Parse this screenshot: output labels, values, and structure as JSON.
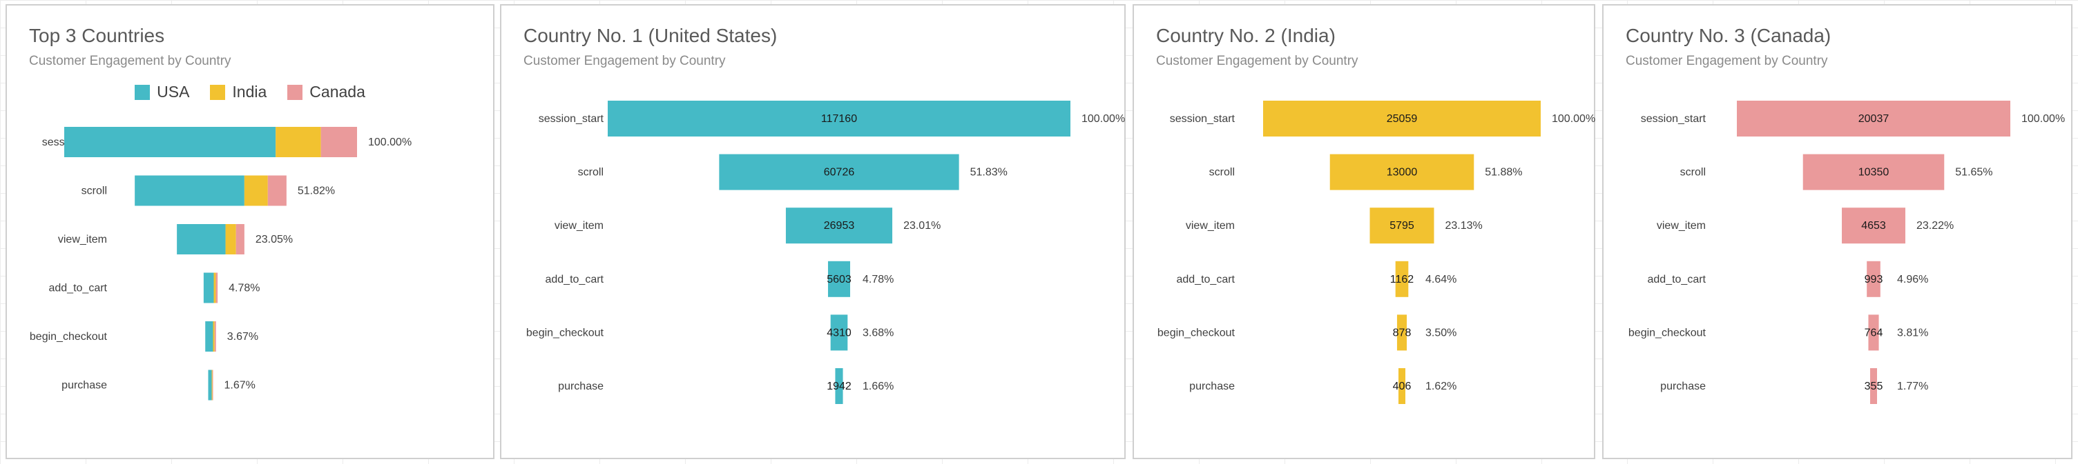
{
  "colors": {
    "USA": "#45BAC6",
    "India": "#F2C230",
    "Canada": "#EA9A9B"
  },
  "legend": [
    {
      "label": "USA",
      "color": "#45BAC6"
    },
    {
      "label": "India",
      "color": "#F2C230"
    },
    {
      "label": "Canada",
      "color": "#EA9A9B"
    }
  ],
  "panels": [
    {
      "title": "Top 3 Countries",
      "subtitle": "Customer Engagement by Country"
    },
    {
      "title": "Country No. 1 (United States)",
      "subtitle": "Customer Engagement by Country"
    },
    {
      "title": "Country No. 2 (India)",
      "subtitle": "Customer Engagement by Country"
    },
    {
      "title": "Country No. 3 (Canada)",
      "subtitle": "Customer Engagement by Country"
    }
  ],
  "chart_data": [
    {
      "type": "bar",
      "subtype": "stacked-funnel",
      "title": "Top 3 Countries",
      "subtitle": "Customer Engagement by Country",
      "categories": [
        "session_start",
        "scroll",
        "view_item",
        "add_to_cart",
        "begin_checkout",
        "purchase"
      ],
      "series": [
        {
          "name": "USA",
          "values": [
            117160,
            60726,
            26953,
            5603,
            4310,
            1942
          ]
        },
        {
          "name": "India",
          "values": [
            25059,
            13000,
            5795,
            1162,
            878,
            406
          ]
        },
        {
          "name": "Canada",
          "values": [
            20037,
            10350,
            4653,
            993,
            764,
            355
          ]
        }
      ],
      "percent_labels": [
        "100.00%",
        "51.82%",
        "23.05%",
        "4.78%",
        "3.67%",
        "1.67%"
      ],
      "legend_position": "top-center"
    },
    {
      "type": "bar",
      "subtype": "funnel",
      "title": "Country No. 1 (United States)",
      "subtitle": "Customer Engagement by Country",
      "categories": [
        "session_start",
        "scroll",
        "view_item",
        "add_to_cart",
        "begin_checkout",
        "purchase"
      ],
      "values": [
        117160,
        60726,
        26953,
        5603,
        4310,
        1942
      ],
      "percent_labels": [
        "100.00%",
        "51.83%",
        "23.01%",
        "4.78%",
        "3.68%",
        "1.66%"
      ],
      "color": "#45BAC6"
    },
    {
      "type": "bar",
      "subtype": "funnel",
      "title": "Country No. 2 (India)",
      "subtitle": "Customer Engagement by Country",
      "categories": [
        "session_start",
        "scroll",
        "view_item",
        "add_to_cart",
        "begin_checkout",
        "purchase"
      ],
      "values": [
        25059,
        13000,
        5795,
        1162,
        878,
        406
      ],
      "percent_labels": [
        "100.00%",
        "51.88%",
        "23.13%",
        "4.64%",
        "3.50%",
        "1.62%"
      ],
      "color": "#F2C230"
    },
    {
      "type": "bar",
      "subtype": "funnel",
      "title": "Country No. 3 (Canada)",
      "subtitle": "Customer Engagement by Country",
      "categories": [
        "session_start",
        "scroll",
        "view_item",
        "add_to_cart",
        "begin_checkout",
        "purchase"
      ],
      "values": [
        20037,
        10350,
        4653,
        993,
        764,
        355
      ],
      "percent_labels": [
        "100.00%",
        "51.65%",
        "23.22%",
        "4.96%",
        "3.81%",
        "1.77%"
      ],
      "color": "#EA9A9B"
    }
  ]
}
